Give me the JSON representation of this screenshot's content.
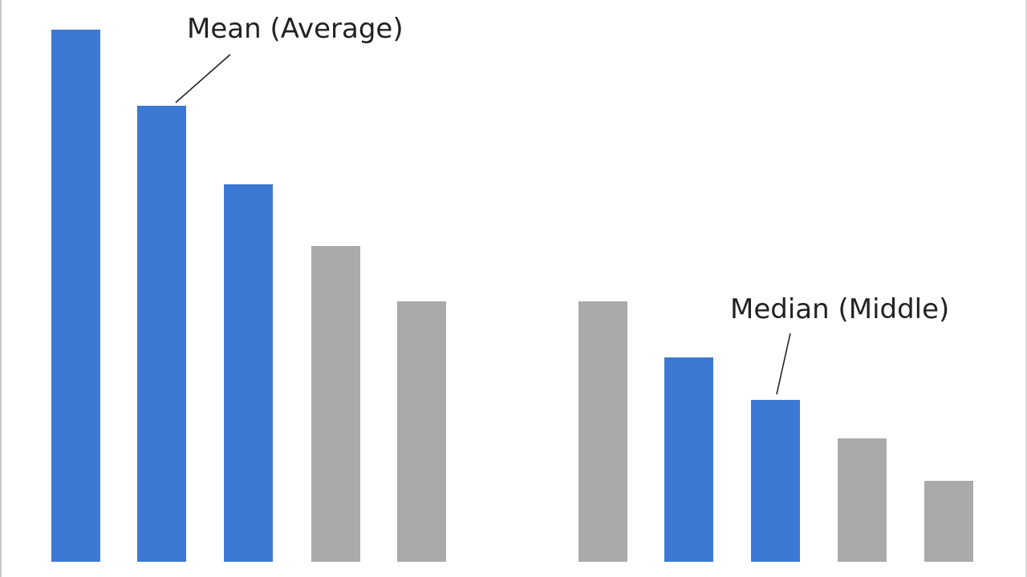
{
  "colors": {
    "highlight": "#3b78d4",
    "muted": "#aaaaaa",
    "text": "#222222",
    "background": "#ffffff"
  },
  "annotations": {
    "mean_label": "Mean (Average)",
    "median_label": "Median (Middle)"
  },
  "chart_data": {
    "type": "bar",
    "title": "",
    "xlabel": "",
    "ylabel": "",
    "grid": false,
    "axes_visible": false,
    "groups": [
      {
        "name": "Mean (Average)",
        "annotation": "Mean (Average)",
        "annotated_bar_index": 1,
        "values": [
          664,
          569,
          471,
          394,
          325
        ],
        "highlighted": [
          true,
          true,
          true,
          false,
          false
        ]
      },
      {
        "name": "Median (Middle)",
        "annotation": "Median (Middle)",
        "annotated_bar_index": 2,
        "values": [
          325,
          255,
          202,
          154,
          101
        ],
        "highlighted": [
          false,
          true,
          true,
          false,
          false
        ]
      }
    ],
    "value_units": "relative height (px, unlabeled)",
    "legend": null
  }
}
